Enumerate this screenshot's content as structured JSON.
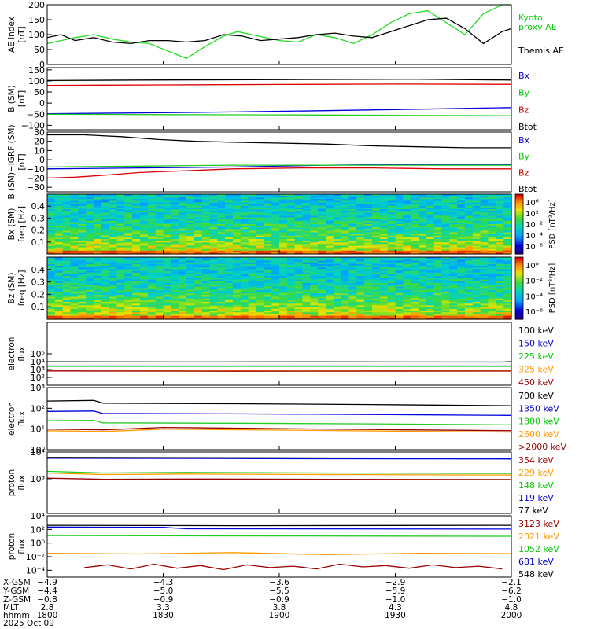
{
  "chart_data": [
    {
      "id": "ae",
      "type": "line",
      "ylabel": [
        "AE index",
        "[nT]"
      ],
      "ylim": [
        0,
        200
      ],
      "yticks": [
        "0",
        "50",
        "100",
        "150",
        "200"
      ],
      "legend": [
        {
          "name": "Kyoto",
          "color": "#00cc00"
        },
        {
          "name": "proxy AE",
          "color": "#00cc00"
        },
        {
          "name": "Themis AE",
          "color": "#000000"
        }
      ],
      "series": [
        {
          "name": "Kyoto proxy AE",
          "color": "#22dd22",
          "x": [
            0,
            3,
            6,
            10,
            14,
            18,
            22,
            26,
            30,
            34,
            38,
            41,
            44,
            47,
            50,
            54,
            58,
            62,
            66,
            70,
            74,
            78,
            82,
            86,
            90,
            94,
            98,
            100
          ],
          "values": [
            70,
            80,
            90,
            100,
            85,
            75,
            70,
            45,
            20,
            60,
            95,
            110,
            100,
            90,
            80,
            75,
            100,
            90,
            70,
            100,
            140,
            170,
            180,
            140,
            100,
            170,
            200,
            200
          ]
        },
        {
          "name": "Themis AE",
          "color": "#000000",
          "x": [
            0,
            3,
            6,
            10,
            14,
            18,
            22,
            26,
            30,
            34,
            38,
            42,
            46,
            50,
            54,
            58,
            62,
            66,
            70,
            74,
            78,
            82,
            86,
            90,
            94,
            98,
            100
          ],
          "values": [
            90,
            100,
            80,
            90,
            75,
            70,
            80,
            80,
            75,
            80,
            100,
            95,
            80,
            85,
            90,
            100,
            105,
            95,
            90,
            110,
            130,
            150,
            155,
            120,
            70,
            110,
            120
          ]
        }
      ]
    },
    {
      "id": "bsm",
      "type": "line",
      "ylabel": [
        "B (SM)",
        "[nT]"
      ],
      "ylim": [
        -120,
        160
      ],
      "yticks": [
        "150",
        "100",
        "50",
        "0",
        "−50",
        "−100"
      ],
      "legend": [
        {
          "name": "Bx",
          "color": "#0000cc"
        },
        {
          "name": "By",
          "color": "#00cc00"
        },
        {
          "name": "Bz",
          "color": "#cc0000"
        },
        {
          "name": "Btot",
          "color": "#000000"
        }
      ],
      "series": [
        {
          "name": "Btot",
          "color": "#000000",
          "x": [
            0,
            20,
            50,
            80,
            100
          ],
          "values": [
            102,
            104,
            106,
            108,
            104
          ]
        },
        {
          "name": "Bz",
          "color": "#dd0000",
          "x": [
            0,
            25,
            50,
            75,
            100
          ],
          "values": [
            80,
            82,
            84,
            86,
            85
          ]
        },
        {
          "name": "Bx",
          "color": "#0000dd",
          "x": [
            0,
            20,
            40,
            60,
            80,
            100
          ],
          "values": [
            -48,
            -44,
            -40,
            -34,
            -27,
            -20
          ]
        },
        {
          "name": "By",
          "color": "#22cc22",
          "x": [
            0,
            25,
            50,
            75,
            100
          ],
          "values": [
            -50,
            -52,
            -53,
            -55,
            -57
          ]
        }
      ]
    },
    {
      "id": "bigrf",
      "type": "line",
      "ylabel": [
        "B (SM)−IGRF (SM)",
        "[nT]"
      ],
      "ylim": [
        -35,
        30
      ],
      "yticks": [
        "30",
        "20",
        "10",
        "0",
        "−10",
        "−20",
        "−30"
      ],
      "legend": [
        {
          "name": "Bx",
          "color": "#0000cc"
        },
        {
          "name": "By",
          "color": "#00cc00"
        },
        {
          "name": "Bz",
          "color": "#cc0000"
        },
        {
          "name": "Btot",
          "color": "#000000"
        }
      ],
      "series": [
        {
          "name": "Btot",
          "color": "#000000",
          "x": [
            0,
            8,
            16,
            24,
            32,
            40,
            50,
            60,
            70,
            80,
            90,
            100
          ],
          "values": [
            27,
            27,
            25,
            22,
            20,
            19,
            18,
            17,
            15,
            14,
            13,
            13
          ]
        },
        {
          "name": "Bx",
          "color": "#0000dd",
          "x": [
            0,
            20,
            40,
            60,
            80,
            100
          ],
          "values": [
            -10,
            -9,
            -8,
            -6,
            -5,
            -5
          ]
        },
        {
          "name": "By",
          "color": "#22cc22",
          "x": [
            0,
            20,
            40,
            60,
            80,
            100
          ],
          "values": [
            -8,
            -7,
            -6,
            -6,
            -6,
            -6
          ]
        },
        {
          "name": "Bz",
          "color": "#dd0000",
          "x": [
            0,
            6,
            12,
            20,
            30,
            40,
            55,
            70,
            85,
            100
          ],
          "values": [
            -20,
            -19,
            -17,
            -14,
            -12,
            -10,
            -9,
            -9,
            -10,
            -10
          ]
        }
      ]
    },
    {
      "id": "bxspec",
      "type": "heatmap",
      "ylabel": [
        "Bx (SM)",
        "freq [Hz]"
      ],
      "ylim": [
        0,
        0.5
      ],
      "yticks": [
        "0.1",
        "0.2",
        "0.3",
        "0.4"
      ],
      "colorbar": {
        "label": "PSD [nT²/Hz]",
        "ticks": [
          "10⁶",
          "10²",
          "10⁻²",
          "10⁻⁴",
          "10⁻⁶"
        ]
      },
      "grid": {
        "cols": 60,
        "rows": 36,
        "seed": 11
      }
    },
    {
      "id": "bzspec",
      "type": "heatmap",
      "ylabel": [
        "Bz (SM)",
        "freq [Hz]"
      ],
      "ylim": [
        0,
        0.5
      ],
      "yticks": [
        "0.1",
        "0.2",
        "0.3",
        "0.4"
      ],
      "colorbar": {
        "label": "PSD [nT²/Hz]",
        "ticks": [
          "10⁰",
          "10⁻²",
          "10⁻⁴",
          "10⁻⁶"
        ]
      },
      "grid": {
        "cols": 60,
        "rows": 36,
        "seed": 29
      }
    },
    {
      "id": "eflux1",
      "type": "line",
      "ylog": true,
      "ylabel": [
        "electron",
        "flux"
      ],
      "ylim": [
        1,
        9
      ],
      "yticks": [
        {
          "label": "10⁵",
          "v": 5
        },
        {
          "label": "10⁴",
          "v": 4
        },
        {
          "label": "10³",
          "v": 3
        },
        {
          "label": "10²",
          "v": 2
        }
      ],
      "legend": [
        {
          "name": "100 keV",
          "color": "#000000"
        },
        {
          "name": "150 keV",
          "color": "#0000cc"
        },
        {
          "name": "225 keV",
          "color": "#00cc00"
        },
        {
          "name": "325 keV",
          "color": "#ff9900"
        },
        {
          "name": "450 keV",
          "color": "#990000"
        }
      ],
      "series": [
        {
          "name": "100 keV",
          "color": "#000000",
          "x": [
            0,
            30,
            60,
            98,
            100
          ],
          "values": [
            3.98,
            3.96,
            3.97,
            3.95,
            4.0
          ]
        },
        {
          "name": "150 keV",
          "color": "#0000dd",
          "x": [
            0,
            100
          ],
          "values": [
            3.45,
            3.45
          ]
        },
        {
          "name": "225 keV",
          "color": "#22cc22",
          "x": [
            0,
            100
          ],
          "values": [
            3.4,
            3.4
          ]
        },
        {
          "name": "325 keV",
          "color": "#ff9900",
          "x": [
            0,
            40,
            100
          ],
          "values": [
            2.95,
            2.9,
            2.92
          ]
        },
        {
          "name": "450 keV",
          "color": "#990000",
          "x": [
            0,
            40,
            100
          ],
          "values": [
            2.82,
            2.78,
            2.8
          ]
        }
      ]
    },
    {
      "id": "eflux2",
      "type": "line",
      "ylog": true,
      "ylabel": [
        "electron",
        "flux"
      ],
      "ylim": [
        0,
        3
      ],
      "yticks": [
        {
          "label": "10³",
          "v": 3
        },
        {
          "label": "10²",
          "v": 2
        },
        {
          "label": "10¹",
          "v": 1
        },
        {
          "label": "10⁰",
          "v": 0
        }
      ],
      "legend": [
        {
          "name": "700 keV",
          "color": "#000000"
        },
        {
          "name": "1350 keV",
          "color": "#0000cc"
        },
        {
          "name": "1800 keV",
          "color": "#00cc00"
        },
        {
          "name": "2600 keV",
          "color": "#ff9900"
        },
        {
          "name": ">2000 keV",
          "color": "#990000"
        }
      ],
      "series": [
        {
          "name": "700 keV",
          "color": "#000000",
          "x": [
            0,
            10,
            12,
            40,
            70,
            100
          ],
          "values": [
            2.35,
            2.38,
            2.25,
            2.22,
            2.18,
            2.12
          ]
        },
        {
          "name": "1350 keV",
          "color": "#0000dd",
          "x": [
            0,
            10,
            12,
            40,
            70,
            100
          ],
          "values": [
            1.85,
            1.87,
            1.75,
            1.73,
            1.7,
            1.66
          ]
        },
        {
          "name": "1800 keV",
          "color": "#22cc22",
          "x": [
            0,
            10,
            12,
            40,
            70,
            100
          ],
          "values": [
            1.4,
            1.42,
            1.3,
            1.28,
            1.25,
            1.2
          ]
        },
        {
          "name": "2600 keV",
          "color": "#ff9900",
          "x": [
            0,
            12,
            25,
            50,
            75,
            100
          ],
          "values": [
            0.92,
            0.88,
            1.0,
            0.95,
            0.9,
            0.85
          ]
        },
        {
          "name": ">2000 keV",
          "color": "#990000",
          "x": [
            0,
            12,
            25,
            50,
            75,
            100
          ],
          "values": [
            1.0,
            0.96,
            1.08,
            1.02,
            0.97,
            0.92
          ]
        }
      ]
    },
    {
      "id": "pflux1",
      "type": "line",
      "ylog": true,
      "ylabel": [
        "proton",
        "flux"
      ],
      "ylim": [
        1.7,
        4
      ],
      "yticks": [
        {
          "label": "10⁴",
          "v": 4
        },
        {
          "label": "10³",
          "v": 3
        }
      ],
      "legend": [
        {
          "name": "354 keV",
          "color": "#990000"
        },
        {
          "name": "229 keV",
          "color": "#ff9900"
        },
        {
          "name": "148 keV",
          "color": "#00cc00"
        },
        {
          "name": "119 keV",
          "color": "#0000cc"
        },
        {
          "name": "77 keV",
          "color": "#000000"
        }
      ],
      "series": [
        {
          "name": "77 keV",
          "color": "#000000",
          "x": [
            0,
            30,
            60,
            100
          ],
          "values": [
            3.8,
            3.79,
            3.78,
            3.77
          ]
        },
        {
          "name": "119 keV",
          "color": "#0000dd",
          "x": [
            0,
            30,
            60,
            100
          ],
          "values": [
            3.77,
            3.76,
            3.75,
            3.74
          ]
        },
        {
          "name": "148 keV",
          "color": "#22cc22",
          "x": [
            0,
            12,
            30,
            60,
            100
          ],
          "values": [
            3.28,
            3.22,
            3.24,
            3.22,
            3.2
          ]
        },
        {
          "name": "229 keV",
          "color": "#ff9900",
          "x": [
            0,
            12,
            30,
            60,
            100
          ],
          "values": [
            3.22,
            3.16,
            3.18,
            3.16,
            3.14
          ]
        },
        {
          "name": "354 keV",
          "color": "#990000",
          "x": [
            0,
            12,
            30,
            60,
            100
          ],
          "values": [
            3.02,
            2.98,
            2.99,
            2.98,
            2.97
          ]
        }
      ]
    },
    {
      "id": "pflux2",
      "type": "line",
      "ylog": true,
      "ylabel": [
        "proton",
        "flux"
      ],
      "ylim": [
        -5,
        4
      ],
      "yticks": [
        {
          "label": "10⁴",
          "v": 4
        },
        {
          "label": "10²",
          "v": 2
        },
        {
          "label": "10⁰",
          "v": 0
        },
        {
          "label": "10⁻²",
          "v": -2
        },
        {
          "label": "10⁻⁴",
          "v": -4
        }
      ],
      "legend": [
        {
          "name": "3123 keV",
          "color": "#990000"
        },
        {
          "name": "2021 keV",
          "color": "#ff9900"
        },
        {
          "name": "1052 keV",
          "color": "#00cc00"
        },
        {
          "name": "681 keV",
          "color": "#0000cc"
        },
        {
          "name": "548 keV",
          "color": "#000000"
        }
      ],
      "series": [
        {
          "name": "548 keV",
          "color": "#000000",
          "x": [
            0,
            40,
            100
          ],
          "values": [
            2.6,
            2.55,
            2.6
          ]
        },
        {
          "name": "681 keV",
          "color": "#0000dd",
          "x": [
            0,
            25,
            30,
            100
          ],
          "values": [
            2.35,
            2.3,
            2.1,
            2.05
          ]
        },
        {
          "name": "1052 keV",
          "color": "#22cc22",
          "x": [
            0,
            50,
            100
          ],
          "values": [
            1.1,
            1.05,
            1.0
          ]
        },
        {
          "name": "2021 keV",
          "color": "#ff9900",
          "x": [
            0,
            20,
            40,
            60,
            80,
            100
          ],
          "values": [
            -1.5,
            -1.6,
            -1.4,
            -1.7,
            -1.5,
            -1.55
          ]
        },
        {
          "name": "3123 keV",
          "color": "#990000",
          "x": [
            8,
            13,
            18,
            23,
            28,
            33,
            38,
            43,
            48,
            53,
            58,
            63,
            68,
            73,
            78,
            83,
            88,
            93,
            98
          ],
          "values": [
            -3.6,
            -3.2,
            -3.8,
            -3.1,
            -3.7,
            -3.3,
            -3.9,
            -3.2,
            -3.6,
            -3.4,
            -3.8,
            -3.1,
            -3.5,
            -3.3,
            -3.7,
            -3.2,
            -3.6,
            -3.4,
            -3.8
          ]
        }
      ]
    }
  ],
  "axis": {
    "row_labels": [
      "X-GSM",
      "Y-GSM",
      "Z-GSM",
      "MLT",
      "hhmm",
      "2025 Oct 09"
    ],
    "columns": [
      {
        "x": 0,
        "values": [
          "−4.9",
          "−4.4",
          "−0.8",
          "2.8",
          "1800"
        ]
      },
      {
        "x": 25,
        "values": [
          "−4.3",
          "−5.0",
          "−0.9",
          "3.3",
          "1830"
        ]
      },
      {
        "x": 50,
        "values": [
          "−3.6",
          "−5.5",
          "−0.9",
          "3.8",
          "1900"
        ]
      },
      {
        "x": 75,
        "values": [
          "−2.9",
          "−5.9",
          "−1.0",
          "4.3",
          "1930"
        ]
      },
      {
        "x": 100,
        "values": [
          "−2.1",
          "−6.2",
          "−1.0",
          "4.8",
          "2000"
        ]
      }
    ]
  }
}
